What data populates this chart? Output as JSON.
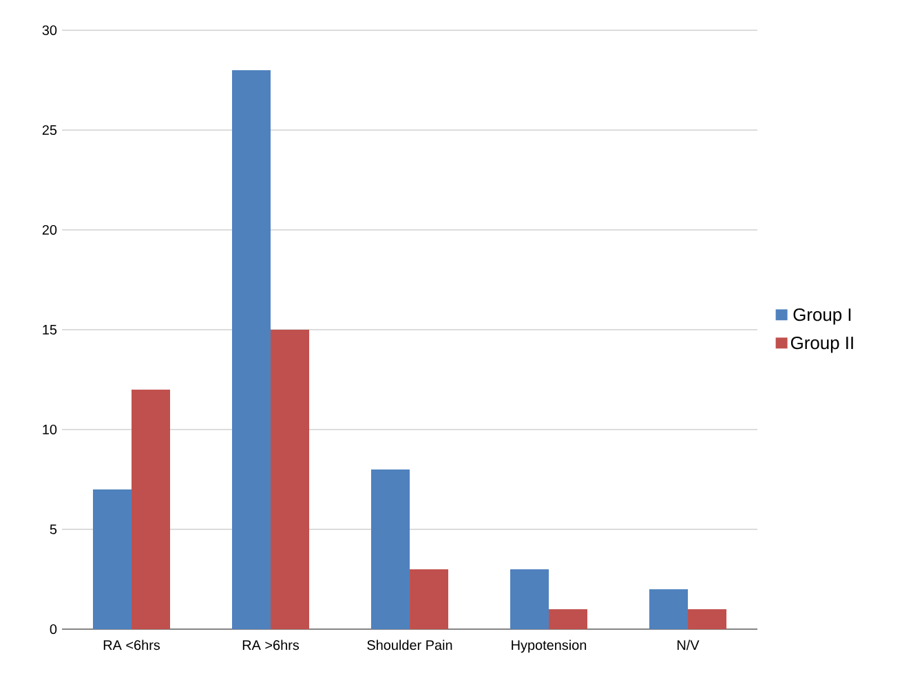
{
  "chart_data": {
    "type": "bar",
    "categories": [
      "RA <6hrs",
      "RA >6hrs",
      "Shoulder Pain",
      "Hypotension",
      "N/V"
    ],
    "series": [
      {
        "name": "Group I",
        "color": "#4f81bd",
        "values": [
          7,
          28,
          8,
          3,
          2
        ]
      },
      {
        "name": "Group II",
        "color": "#c0504d",
        "values": [
          12,
          15,
          3,
          1,
          1
        ]
      }
    ],
    "ylim": [
      0,
      30
    ],
    "yticks": [
      0,
      5,
      10,
      15,
      20,
      25,
      30
    ],
    "grid": "y",
    "legend": "right"
  }
}
